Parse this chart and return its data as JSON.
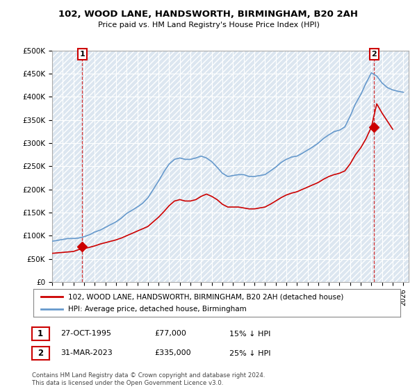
{
  "title": "102, WOOD LANE, HANDSWORTH, BIRMINGHAM, B20 2AH",
  "subtitle": "Price paid vs. HM Land Registry's House Price Index (HPI)",
  "ylabel_ticks": [
    "£0",
    "£50K",
    "£100K",
    "£150K",
    "£200K",
    "£250K",
    "£300K",
    "£350K",
    "£400K",
    "£450K",
    "£500K"
  ],
  "ytick_values": [
    0,
    50000,
    100000,
    150000,
    200000,
    250000,
    300000,
    350000,
    400000,
    450000,
    500000
  ],
  "xlim_start": 1993.0,
  "xlim_end": 2026.5,
  "ylim": [
    0,
    500000
  ],
  "hpi_color": "#6699cc",
  "price_color": "#cc0000",
  "bg_plot": "#dce6f0",
  "annotation1_year": 1995.82,
  "annotation1_price": 77000,
  "annotation2_year": 2023.25,
  "annotation2_price": 335000,
  "legend_line1": "102, WOOD LANE, HANDSWORTH, BIRMINGHAM, B20 2AH (detached house)",
  "legend_line2": "HPI: Average price, detached house, Birmingham",
  "annotation1_date": "27-OCT-1995",
  "annotation1_price_str": "£77,000",
  "annotation1_hpi_str": "15% ↓ HPI",
  "annotation2_date": "31-MAR-2023",
  "annotation2_price_str": "£335,000",
  "annotation2_hpi_str": "25% ↓ HPI",
  "footer": "Contains HM Land Registry data © Crown copyright and database right 2024.\nThis data is licensed under the Open Government Licence v3.0.",
  "background_color": "#ffffff",
  "hpi_years": [
    1993,
    1993.5,
    1994,
    1994.5,
    1995,
    1995.5,
    1996,
    1996.5,
    1997,
    1997.5,
    1998,
    1998.5,
    1999,
    1999.5,
    2000,
    2000.5,
    2001,
    2001.5,
    2002,
    2002.5,
    2003,
    2003.5,
    2004,
    2004.5,
    2005,
    2005.5,
    2006,
    2006.5,
    2007,
    2007.5,
    2008,
    2008.5,
    2009,
    2009.5,
    2010,
    2010.5,
    2011,
    2011.5,
    2012,
    2012.5,
    2013,
    2013.5,
    2014,
    2014.5,
    2015,
    2015.5,
    2016,
    2016.5,
    2017,
    2017.5,
    2018,
    2018.5,
    2019,
    2019.5,
    2020,
    2020.5,
    2021,
    2021.5,
    2022,
    2022.5,
    2023,
    2023.5,
    2024,
    2024.5,
    2025,
    2025.5,
    2026
  ],
  "hpi_values": [
    88000,
    90000,
    92000,
    94000,
    94000,
    95000,
    98000,
    102000,
    108000,
    112000,
    118000,
    124000,
    130000,
    138000,
    148000,
    155000,
    162000,
    170000,
    182000,
    200000,
    218000,
    238000,
    255000,
    265000,
    268000,
    265000,
    265000,
    268000,
    272000,
    268000,
    260000,
    248000,
    235000,
    228000,
    230000,
    232000,
    232000,
    228000,
    228000,
    230000,
    232000,
    240000,
    248000,
    258000,
    265000,
    270000,
    272000,
    278000,
    285000,
    292000,
    300000,
    310000,
    318000,
    325000,
    328000,
    335000,
    358000,
    385000,
    405000,
    430000,
    452000,
    445000,
    430000,
    420000,
    415000,
    412000,
    410000
  ],
  "red_years": [
    1993,
    1993.5,
    1994,
    1994.5,
    1995,
    1995.5,
    1996,
    1996.5,
    1997,
    1997.5,
    1998,
    1998.5,
    1999,
    1999.5,
    2000,
    2000.5,
    2001,
    2001.5,
    2002,
    2002.5,
    2003,
    2003.5,
    2004,
    2004.5,
    2005,
    2005.5,
    2006,
    2006.5,
    2007,
    2007.5,
    2008,
    2008.5,
    2009,
    2009.5,
    2010,
    2010.5,
    2011,
    2011.5,
    2012,
    2012.5,
    2013,
    2013.5,
    2014,
    2014.5,
    2015,
    2015.5,
    2016,
    2016.5,
    2017,
    2017.5,
    2018,
    2018.5,
    2019,
    2019.5,
    2020,
    2020.5,
    2021,
    2021.5,
    2022,
    2022.5,
    2023,
    2023.5,
    2024,
    2025
  ],
  "red_values": [
    62000,
    63000,
    64000,
    65000,
    66000,
    70000,
    72000,
    75000,
    78000,
    82000,
    85000,
    88000,
    91000,
    95000,
    100000,
    105000,
    110000,
    115000,
    120000,
    130000,
    140000,
    152000,
    165000,
    175000,
    178000,
    175000,
    175000,
    178000,
    185000,
    190000,
    185000,
    178000,
    168000,
    162000,
    162000,
    162000,
    160000,
    158000,
    158000,
    160000,
    162000,
    168000,
    175000,
    182000,
    188000,
    192000,
    195000,
    200000,
    205000,
    210000,
    215000,
    222000,
    228000,
    232000,
    235000,
    240000,
    255000,
    275000,
    290000,
    310000,
    335000,
    385000,
    365000,
    330000
  ]
}
